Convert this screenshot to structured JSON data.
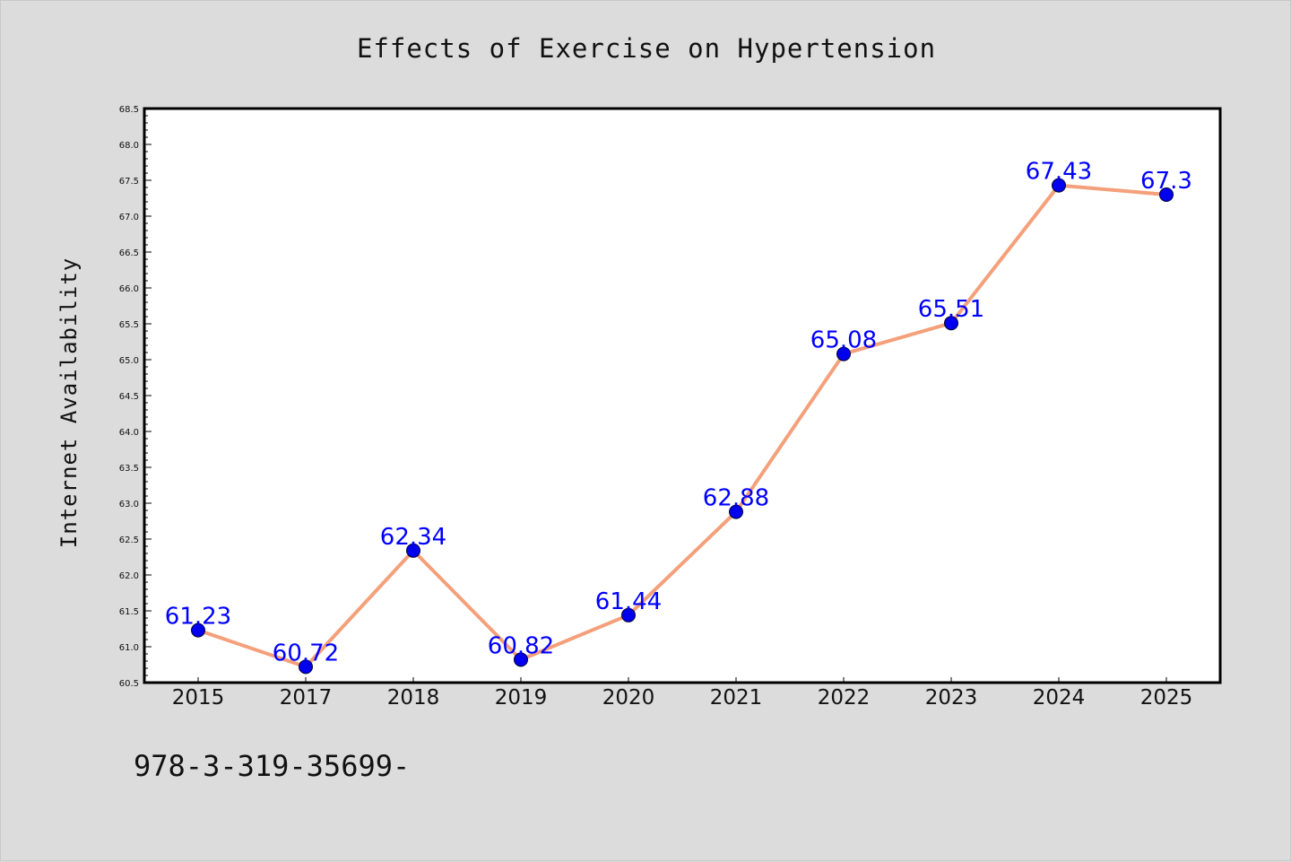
{
  "colors": {
    "background": "#dcdcdc",
    "plot_background": "#ffffff",
    "line": "#f4a07a",
    "marker": "#0000ee",
    "data_label": "#0000ff"
  },
  "footnote": "978-3-319-35699-",
  "chart_data": {
    "type": "line",
    "title": "Effects of Exercise on Hypertension",
    "xlabel": "",
    "ylabel": "Internet Availability",
    "categories": [
      "2015",
      "2017",
      "2018",
      "2019",
      "2020",
      "2021",
      "2022",
      "2023",
      "2024",
      "2025"
    ],
    "series": [
      {
        "values": [
          61.23,
          60.72,
          62.34,
          60.82,
          61.44,
          62.88,
          65.08,
          65.51,
          67.43,
          67.3
        ],
        "labels": [
          "61.23",
          "60.72",
          "62.34",
          "60.82",
          "61.44",
          "62.88",
          "65.08",
          "65.51",
          "67.43",
          "67.3"
        ]
      }
    ],
    "ylim": [
      60.5,
      68.5
    ],
    "yticks": [
      "60.5",
      "61.0",
      "61.5",
      "62.0",
      "62.5",
      "63.0",
      "63.5",
      "64.0",
      "64.5",
      "65.0",
      "65.5",
      "66.0",
      "66.5",
      "67.0",
      "67.5",
      "68.0",
      "68.5"
    ],
    "grid": false,
    "legend": "none"
  }
}
